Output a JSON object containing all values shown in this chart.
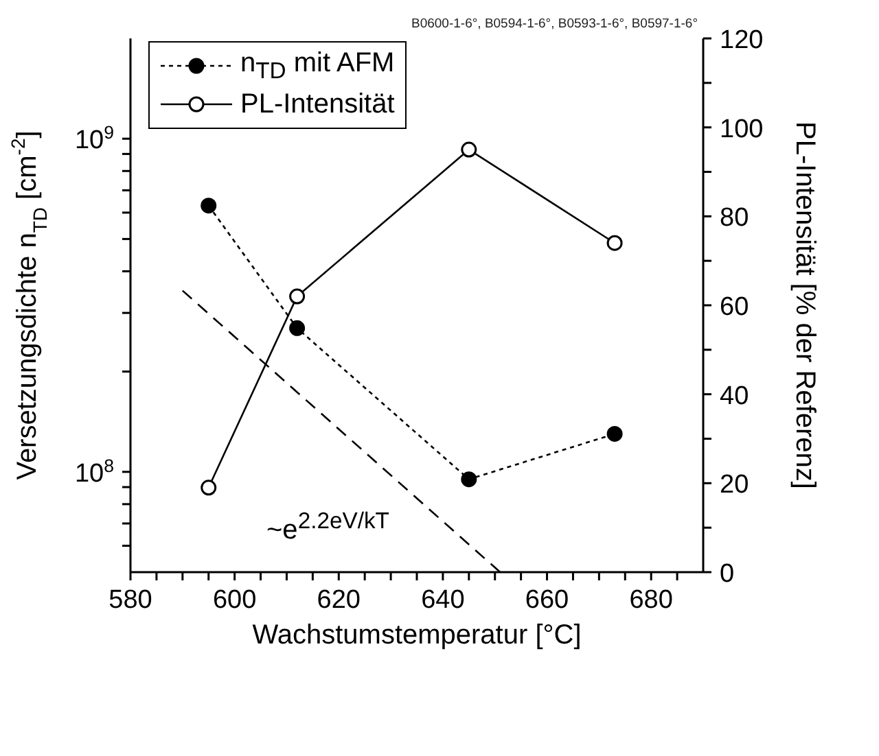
{
  "chart_data": {
    "type": "line",
    "xlabel": "Wachstumstemperatur [°C]",
    "ylabel": "Versetzungsdichte n$_{TD}$ [cm$^{-2}$]",
    "y2label": "PL-Intensität [% der Referenz]",
    "x": [
      595,
      612,
      645,
      673
    ],
    "series": [
      {
        "name": "n$_{TD}$ mit AFM",
        "color": "#000000",
        "values": [
          630000000,
          270000000,
          95000000,
          130000000
        ],
        "line_style": "dotted",
        "marker": "circle"
      },
      {
        "name": "PL-Intensität",
        "color": "#000000",
        "values": [
          19,
          62,
          95,
          74
        ],
        "axis": "y2",
        "line_style": "solid",
        "marker": "circle"
      },
      {
        "color": "#000000",
        "x": [
          590,
          651
        ],
        "values": [
          350000000,
          50000000
        ],
        "line_style": "dashed",
        "marker": "none"
      }
    ],
    "xlim": [
      580,
      690
    ],
    "xticks": [
      580,
      {
        "value": 585,
        "label": null
      },
      600,
      {
        "value": 605,
        "label": null
      },
      620,
      {
        "value": 625,
        "label": null
      },
      640,
      {
        "value": 645,
        "label": null
      },
      660,
      {
        "value": 665,
        "label": null
      },
      680,
      {
        "value": 685,
        "label": null
      },
      {
        "value": 590,
        "label": null
      },
      {
        "value": 595,
        "label": null
      },
      {
        "value": 610,
        "label": null
      },
      {
        "value": 615,
        "label": null
      },
      {
        "value": 630,
        "label": null
      },
      {
        "value": 635,
        "label": null
      },
      {
        "value": 650,
        "label": null
      },
      {
        "value": 655,
        "label": null
      },
      {
        "value": 670,
        "label": null
      },
      {
        "value": 675,
        "label": null
      }
    ],
    "log": "y",
    "ylim": [
      50000000,
      2000000000
    ],
    "yticks": [
      {
        "value": 60000000,
        "label": null
      },
      {
        "value": 70000000,
        "label": null
      },
      {
        "value": 80000000,
        "label": null
      },
      {
        "value": 90000000,
        "label": null
      },
      {
        "value": 100000000,
        "label": "10$^{8}$"
      },
      {
        "value": 200000000,
        "label": null
      },
      {
        "value": 300000000,
        "label": null
      },
      {
        "value": 400000000,
        "label": null
      },
      {
        "value": 500000000,
        "label": null
      },
      {
        "value": 600000000,
        "label": null
      },
      {
        "value": 700000000,
        "label": null
      },
      {
        "value": 800000000,
        "label": null
      },
      {
        "value": 900000000,
        "label": null
      },
      {
        "value": 1000000000,
        "label": "10$^{9}$"
      }
    ],
    "y2lim": [
      0,
      120
    ],
    "y2ticks": [
      0,
      {
        "value": 10,
        "label": null
      },
      20,
      {
        "value": 30,
        "label": null
      },
      40,
      {
        "value": 50,
        "label": null
      },
      60,
      {
        "value": 70,
        "label": null
      },
      80,
      {
        "value": 90,
        "label": null
      },
      100,
      {
        "value": 110,
        "label": null
      },
      120
    ],
    "legend": "top left",
    "grid": false,
    "annotations": [
      "B0600-1-6°, B0594-1-6°, B0593-1-6°, B0597-1-6°",
      "~e$^{2.2eV/kT}$"
    ]
  }
}
